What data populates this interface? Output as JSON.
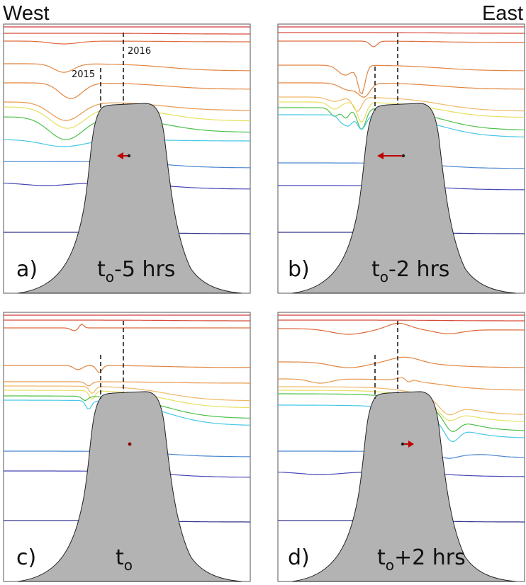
{
  "header": {
    "west": "West",
    "east": "East"
  },
  "year_labels": {
    "first": "2015",
    "second": "2016"
  },
  "colors": {
    "terrain": "#b3b3b3",
    "arrow": "#c00000",
    "isolines": [
      "#d03a3a",
      "#d84a3a",
      "#de6a3a",
      "#e2843f",
      "#e8984e",
      "#f0b868",
      "#e6e060",
      "#4cc04a",
      "#46c8e6",
      "#4a86d0",
      "#4646b8",
      "#34348e"
    ]
  },
  "panels": [
    {
      "letter": "a)",
      "time_base": "t",
      "time_sub": "o",
      "time_offset": "-5 hrs",
      "motion": "west",
      "arrow_icon": "arrow-left"
    },
    {
      "letter": "b)",
      "time_base": "t",
      "time_sub": "o",
      "time_offset": "-2 hrs",
      "motion": "west",
      "arrow_icon": "arrow-left"
    },
    {
      "letter": "c)",
      "time_base": "t",
      "time_sub": "o",
      "time_offset": "",
      "motion": "none",
      "arrow_icon": "dot"
    },
    {
      "letter": "d)",
      "time_base": "t",
      "time_sub": "o",
      "time_offset": "+2 hrs",
      "motion": "east",
      "arrow_icon": "arrow-right"
    }
  ]
}
